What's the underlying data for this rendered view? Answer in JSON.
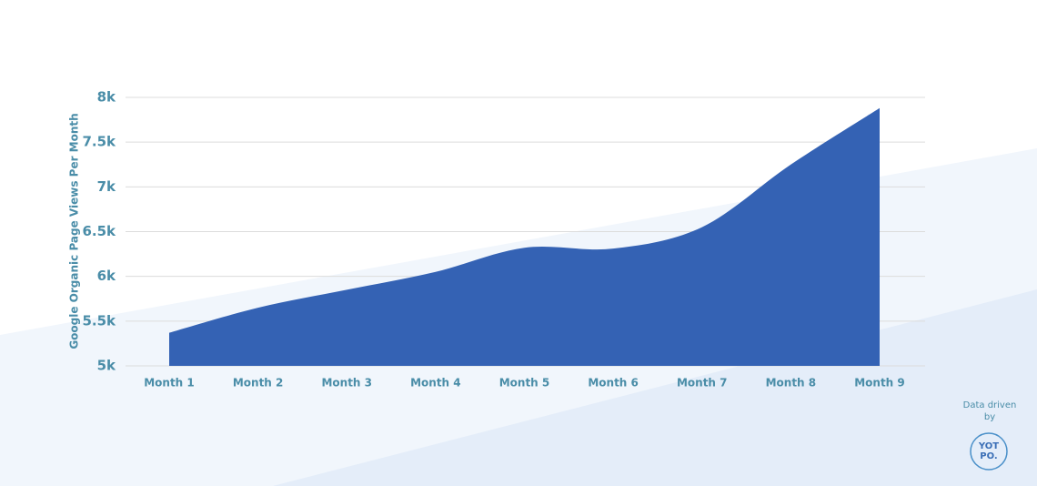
{
  "chart_data": {
    "type": "area",
    "y_label": "Google Organic Page Views Per Month",
    "categories": [
      "Month 1",
      "Month 2",
      "Month 3",
      "Month 4",
      "Month 5",
      "Month 6",
      "Month 7",
      "Month 8",
      "Month 9"
    ],
    "values": [
      5370,
      5650,
      5850,
      6050,
      6320,
      6310,
      6550,
      7250,
      7880
    ],
    "color": "#3462b4",
    "ylim": [
      5000,
      8000
    ],
    "yticks": [
      {
        "value": 5000,
        "label": "5k"
      },
      {
        "value": 5500,
        "label": "5.5k"
      },
      {
        "value": 6000,
        "label": "6k"
      },
      {
        "value": 6500,
        "label": "6.5k"
      },
      {
        "value": 7000,
        "label": "7k"
      },
      {
        "value": 7500,
        "label": "7.5k"
      },
      {
        "value": 8000,
        "label": "8k"
      }
    ],
    "grid": true
  },
  "branding": {
    "caption": "Data driven by",
    "logo_lines": [
      "YOT",
      "PO."
    ]
  }
}
